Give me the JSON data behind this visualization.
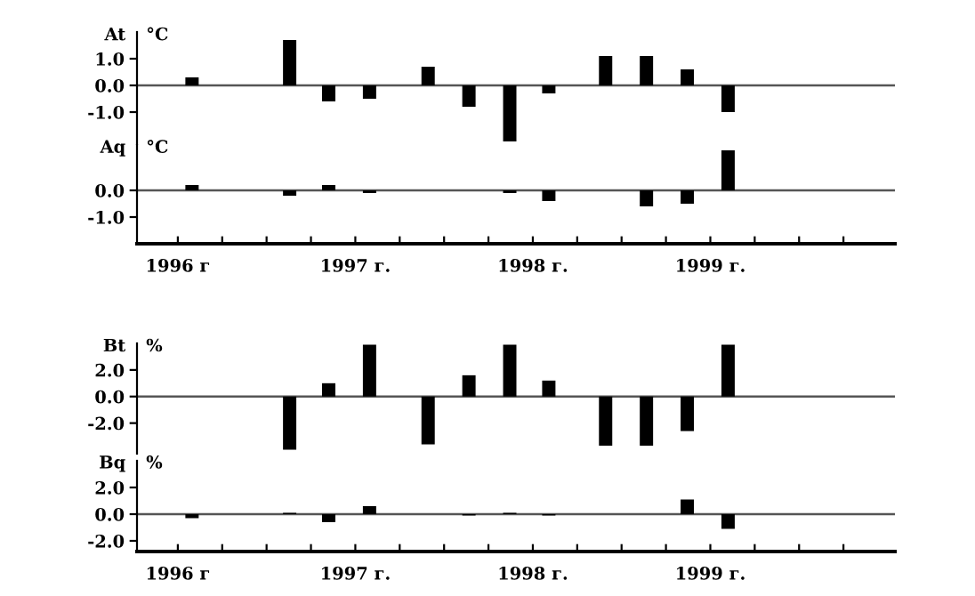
{
  "chart_data": [
    {
      "type": "bar",
      "ylabel": "At",
      "annotations": [
        "°C"
      ],
      "color": "#000000",
      "x": [
        1996.08,
        1996.63,
        1996.85,
        1997.08,
        1997.41,
        1997.64,
        1997.87,
        1998.09,
        1998.41,
        1998.64,
        1998.87,
        1999.1
      ],
      "values": [
        0.3,
        1.7,
        -0.6,
        -0.5,
        0.7,
        -0.8,
        -2.1,
        -0.3,
        1.1,
        1.1,
        0.6,
        -1.0
      ],
      "xlim": [
        1995.77,
        2000.04
      ],
      "ylim": [
        -2.2,
        2.0
      ],
      "yticks": [
        {
          "value": 1,
          "label": "1.0"
        },
        {
          "value": 0,
          "label": "0.0"
        },
        {
          "value": -1,
          "label": "-1.0"
        }
      ],
      "ref_lines": [
        {
          "axis": "y",
          "value": 0
        }
      ],
      "tick_labels": "y"
    },
    {
      "type": "bar",
      "ylabel": "Aq",
      "annotations": [
        "°C"
      ],
      "color": "#000000",
      "x": [
        1996.08,
        1996.63,
        1996.85,
        1997.08,
        1997.87,
        1998.09,
        1998.64,
        1998.87,
        1999.1
      ],
      "values": [
        0.2,
        -0.2,
        0.2,
        -0.1,
        -0.1,
        -0.4,
        -0.6,
        -0.5,
        1.5
      ],
      "xlim": [
        1995.77,
        2000.04
      ],
      "ylim": [
        -2.0,
        1.7
      ],
      "yticks": [
        {
          "value": 0,
          "label": "0.0"
        },
        {
          "value": -1,
          "label": "-1.0"
        }
      ],
      "xticks": [
        {
          "value": 1996,
          "label": "1996 г"
        },
        {
          "value": 1996.25,
          "label": null
        },
        {
          "value": 1996.5,
          "label": null
        },
        {
          "value": 1996.75,
          "label": null
        },
        {
          "value": 1997,
          "label": "1997 г."
        },
        {
          "value": 1997.25,
          "label": null
        },
        {
          "value": 1997.5,
          "label": null
        },
        {
          "value": 1997.75,
          "label": null
        },
        {
          "value": 1998,
          "label": "1998 г."
        },
        {
          "value": 1998.25,
          "label": null
        },
        {
          "value": 1998.5,
          "label": null
        },
        {
          "value": 1998.75,
          "label": null
        },
        {
          "value": 1999,
          "label": "1999 г."
        },
        {
          "value": 1999.25,
          "label": null
        },
        {
          "value": 1999.5,
          "label": null
        },
        {
          "value": 1999.75,
          "label": null
        }
      ],
      "ref_lines": [
        {
          "axis": "y",
          "value": 0
        }
      ]
    },
    {
      "type": "bar",
      "ylabel": "Bt",
      "annotations": [
        "%"
      ],
      "color": "#000000",
      "x": [
        1996.63,
        1996.85,
        1997.08,
        1997.41,
        1997.64,
        1997.87,
        1998.09,
        1998.41,
        1998.64,
        1998.87,
        1999.1
      ],
      "values": [
        -4.0,
        1.0,
        3.9,
        -3.6,
        1.6,
        3.9,
        1.2,
        -3.7,
        -3.7,
        -2.6,
        3.9
      ],
      "xlim": [
        1995.77,
        2000.04
      ],
      "ylim": [
        -4.3,
        4.0
      ],
      "yticks": [
        {
          "value": 2,
          "label": "2.0"
        },
        {
          "value": 0,
          "label": "0.0"
        },
        {
          "value": -2,
          "label": "-2.0"
        }
      ],
      "ref_lines": [
        {
          "axis": "y",
          "value": 0
        }
      ],
      "tick_labels": "y"
    },
    {
      "type": "bar",
      "ylabel": "Bq",
      "annotations": [
        "%"
      ],
      "color": "#000000",
      "x": [
        1996.08,
        1996.63,
        1996.85,
        1997.08,
        1997.64,
        1997.87,
        1998.09,
        1998.87,
        1999.1
      ],
      "values": [
        -0.3,
        0.1,
        -0.6,
        0.6,
        -0.1,
        0.1,
        -0.1,
        1.1,
        -1.1
      ],
      "xlim": [
        1995.77,
        2000.04
      ],
      "ylim": [
        -2.8,
        4.0
      ],
      "yticks": [
        {
          "value": 2,
          "label": "2.0"
        },
        {
          "value": 0,
          "label": "0.0"
        },
        {
          "value": -2,
          "label": "-2.0"
        }
      ],
      "xticks": [
        {
          "value": 1996,
          "label": "1996 г"
        },
        {
          "value": 1996.25,
          "label": null
        },
        {
          "value": 1996.5,
          "label": null
        },
        {
          "value": 1996.75,
          "label": null
        },
        {
          "value": 1997,
          "label": "1997 г."
        },
        {
          "value": 1997.25,
          "label": null
        },
        {
          "value": 1997.5,
          "label": null
        },
        {
          "value": 1997.75,
          "label": null
        },
        {
          "value": 1998,
          "label": "1998 г."
        },
        {
          "value": 1998.25,
          "label": null
        },
        {
          "value": 1998.5,
          "label": null
        },
        {
          "value": 1998.75,
          "label": null
        },
        {
          "value": 1999,
          "label": "1999 г."
        },
        {
          "value": 1999.25,
          "label": null
        },
        {
          "value": 1999.5,
          "label": null
        },
        {
          "value": 1999.75,
          "label": null
        }
      ],
      "ref_lines": [
        {
          "axis": "y",
          "value": 0
        }
      ]
    }
  ]
}
